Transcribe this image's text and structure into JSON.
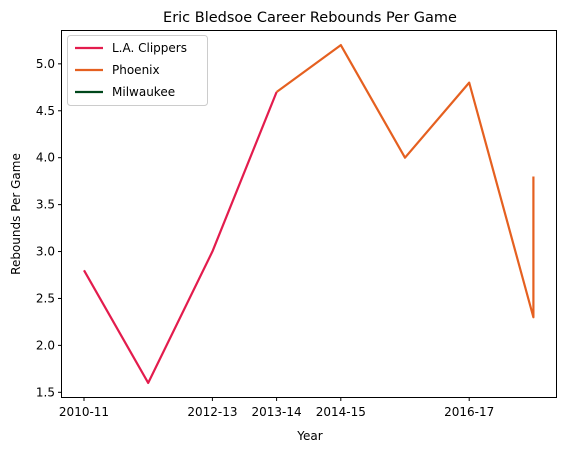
{
  "chart_data": {
    "type": "line",
    "title": "Eric Bledsoe Career Rebounds Per Game",
    "xlabel": "Year",
    "ylabel": "Rebounds Per Game",
    "x_ticks": [
      "2010-11",
      "2012-13",
      "2013-14",
      "2014-15",
      "2016-17"
    ],
    "ylim": [
      1.45,
      5.35
    ],
    "y_ticks": [
      1.5,
      2.0,
      2.5,
      3.0,
      3.5,
      4.0,
      4.5,
      5.0
    ],
    "grid": false,
    "legend_position": "top-left",
    "series": [
      {
        "name": "L.A. Clippers",
        "color": "#e31c4d",
        "x": [
          "2010-11",
          "2011-12",
          "2012-13",
          "2013-14"
        ],
        "values": [
          2.8,
          1.6,
          3.0,
          4.7
        ]
      },
      {
        "name": "Phoenix",
        "color": "#e56020",
        "x": [
          "2013-14",
          "2014-15",
          "2015-16",
          "2016-17",
          "2017-18",
          "2017-18",
          "2017-18"
        ],
        "values": [
          4.7,
          5.2,
          4.0,
          4.8,
          2.3,
          2.3,
          3.8
        ]
      },
      {
        "name": "Milwaukee",
        "color": "#00471b",
        "x": [],
        "values": []
      }
    ]
  }
}
